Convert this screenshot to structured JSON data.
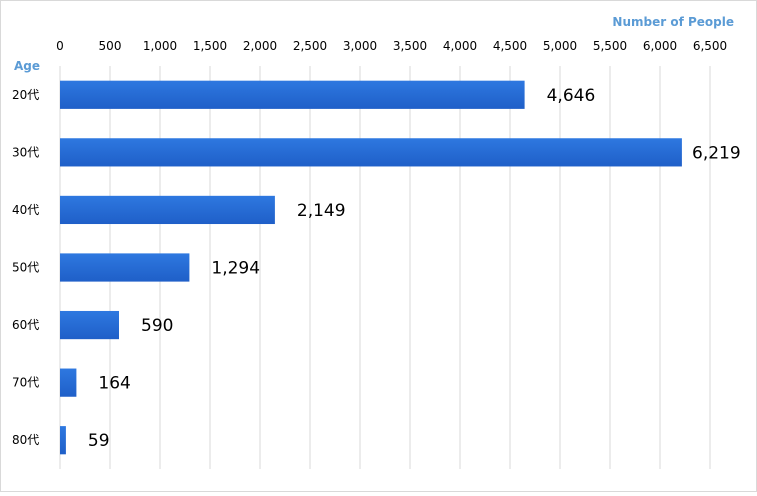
{
  "chart_data": {
    "type": "bar",
    "orientation": "horizontal",
    "categories": [
      "20代",
      "30代",
      "40代",
      "50代",
      "60代",
      "70代",
      "80代"
    ],
    "values": [
      4646,
      6219,
      2149,
      1294,
      590,
      164,
      59
    ],
    "value_labels": [
      "4,646",
      "6,219",
      "2,149",
      "1,294",
      "590",
      "164",
      "59"
    ],
    "xlabel": "Number of People",
    "ylabel": "Age",
    "xlim": [
      0,
      6500
    ],
    "x_ticks": [
      0,
      500,
      1000,
      1500,
      2000,
      2500,
      3000,
      3500,
      4000,
      4500,
      5000,
      5500,
      6000,
      6500
    ],
    "x_tick_labels": [
      "0",
      "500",
      "1,000",
      "1,500",
      "2,000",
      "2,500",
      "3,000",
      "3,500",
      "4,000",
      "4,500",
      "5,000",
      "5,500",
      "6,000",
      "6,500"
    ],
    "x_axis_position": "top",
    "grid": true,
    "colors": {
      "bar": "#1f5fc8",
      "bar_light": "#2e78e0",
      "axis_title": "#5b9bd5",
      "gridline": "#d9d9d9"
    }
  }
}
